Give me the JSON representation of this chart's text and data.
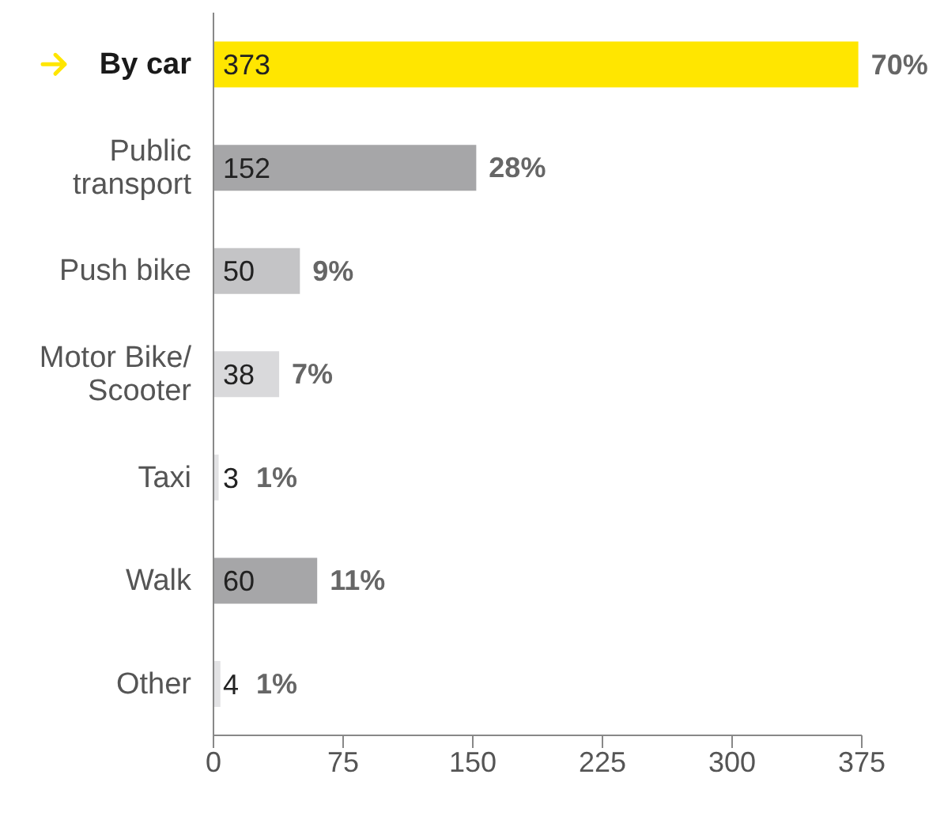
{
  "chart_data": {
    "type": "bar",
    "orientation": "horizontal",
    "categories": [
      "By car",
      "Public transport",
      "Push bike",
      "Motor Bike/ Scooter",
      "Taxi",
      "Walk",
      "Other"
    ],
    "values": [
      373,
      152,
      50,
      38,
      3,
      60,
      4
    ],
    "colors": [
      "#ffe600",
      "#a6a6a8",
      "#c4c4c6",
      "#d9d9db",
      "#e2e2e4",
      "#a6a6a8",
      "#e2e2e4"
    ],
    "xlim": [
      0,
      375
    ],
    "xticks": [
      0,
      75,
      150,
      225,
      300,
      375
    ],
    "grid": false,
    "data_labels": true,
    "annotations": [
      {
        "text": "70%",
        "x": 373,
        "y": "By car"
      },
      {
        "text": "28%",
        "x": 152,
        "y": "Public transport"
      },
      {
        "text": "9%",
        "x": 50,
        "y": "Push bike"
      },
      {
        "text": "7%",
        "x": 38,
        "y": "Motor Bike/ Scooter"
      },
      {
        "text": "1%",
        "x": 3,
        "y": "Taxi"
      },
      {
        "text": "11%",
        "x": 60,
        "y": "Walk"
      },
      {
        "text": "1%",
        "x": 4,
        "y": "Other"
      }
    ]
  }
}
